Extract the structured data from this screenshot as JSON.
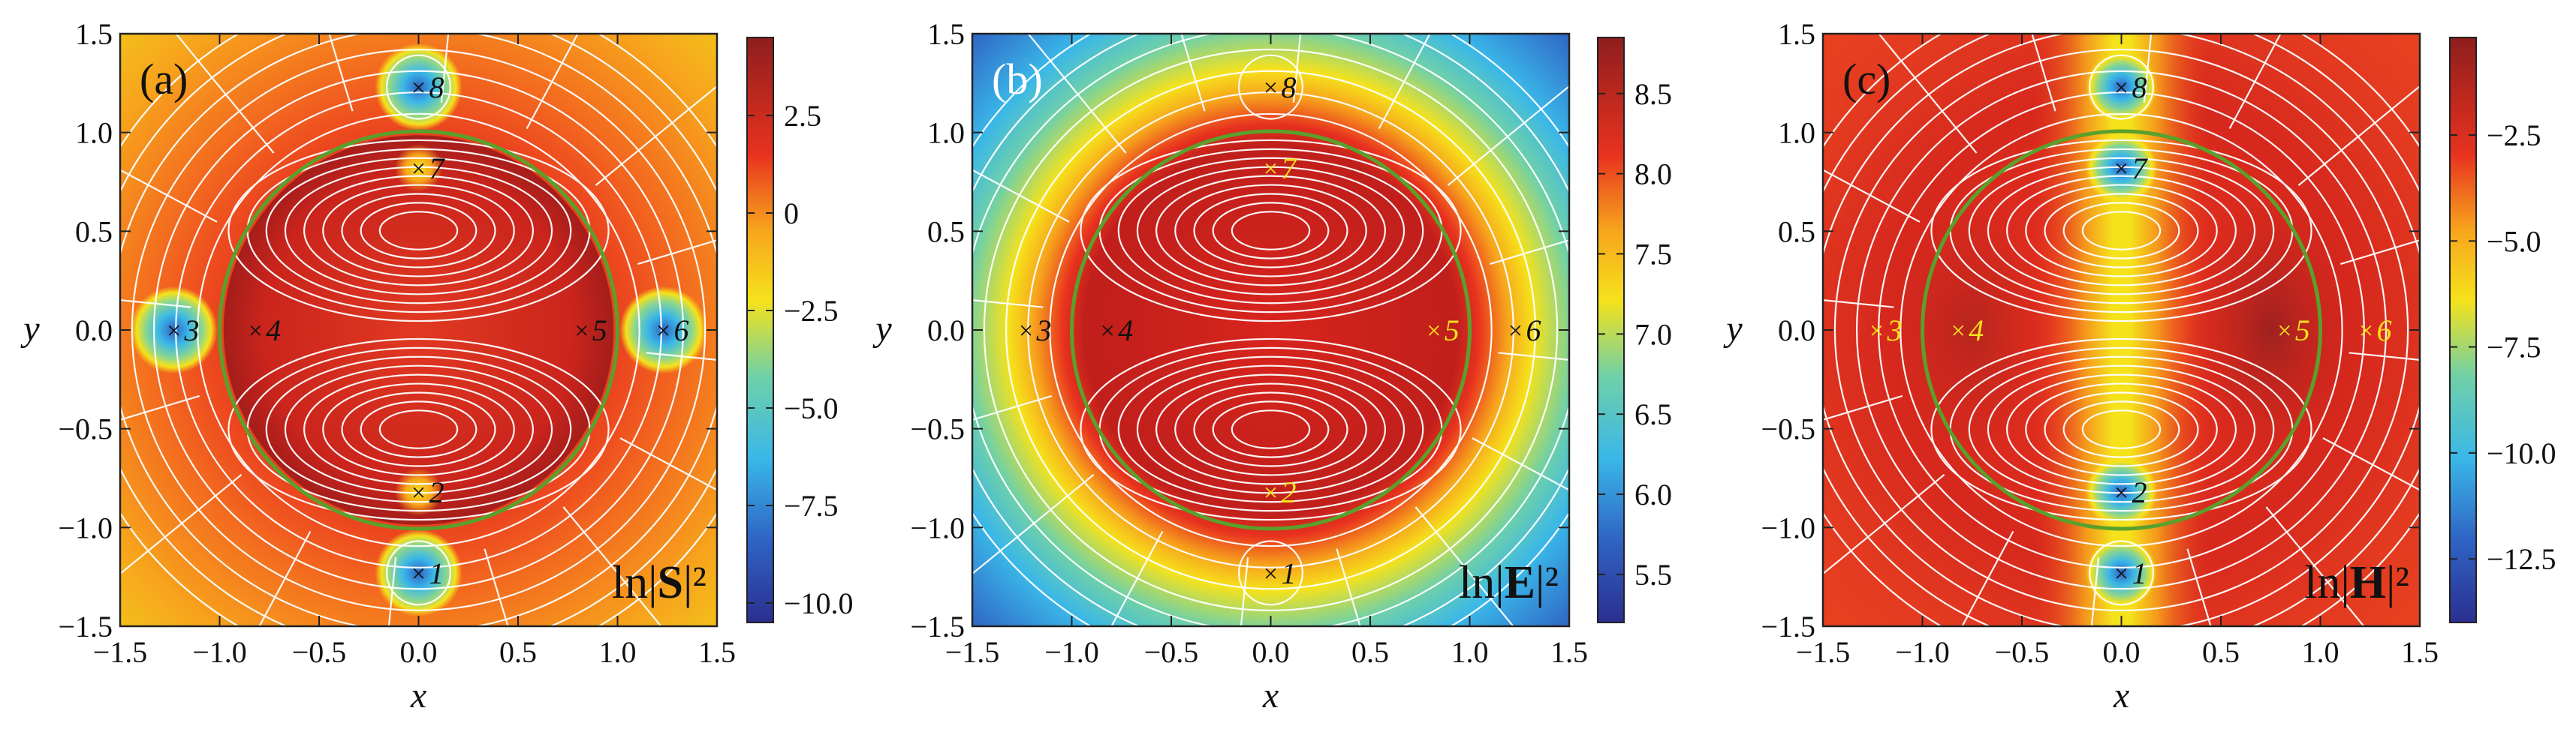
{
  "chart_data": [
    {
      "type": "heatmap",
      "panel_label": "(a)",
      "field_label": "ln|S|²",
      "field_prefix": "ln|",
      "field_symbol": "S",
      "field_suffix": "|²",
      "xlabel": "x",
      "ylabel": "y",
      "xlim": [
        -1.5,
        1.5
      ],
      "ylim": [
        -1.5,
        1.5
      ],
      "x_ticks": [
        "−1.5",
        "−1.0",
        "−0.5",
        "0.0",
        "0.5",
        "1.0",
        "1.5"
      ],
      "y_ticks": [
        "−1.5",
        "−1.0",
        "−0.5",
        "0.0",
        "0.5",
        "1.0",
        "1.5"
      ],
      "x_tick_values": [
        -1.5,
        -1.0,
        -0.5,
        0.0,
        0.5,
        1.0,
        1.5
      ],
      "y_tick_values": [
        -1.5,
        -1.0,
        -0.5,
        0.0,
        0.5,
        1.0,
        1.5
      ],
      "colorbar": {
        "min": -10.5,
        "max": 4.5,
        "ticks": [
          "2.5",
          "0",
          "−2.5",
          "−5.0",
          "−7.5",
          "−10.0"
        ],
        "tick_values": [
          2.5,
          0,
          -2.5,
          -5.0,
          -7.5,
          -10.0
        ]
      },
      "circle": {
        "center": [
          0,
          0
        ],
        "radius": 1.0,
        "color": "#5aa02c"
      },
      "points": [
        {
          "label": "1",
          "x": 0.0,
          "y": -1.23,
          "color": "#111111"
        },
        {
          "label": "2",
          "x": 0.0,
          "y": -0.82,
          "color": "#111111"
        },
        {
          "label": "3",
          "x": -1.23,
          "y": 0.0,
          "color": "#111111"
        },
        {
          "label": "4",
          "x": -0.82,
          "y": 0.0,
          "color": "#111111"
        },
        {
          "label": "5",
          "x": 0.82,
          "y": 0.0,
          "color": "#111111"
        },
        {
          "label": "6",
          "x": 1.23,
          "y": 0.0,
          "color": "#111111"
        },
        {
          "label": "7",
          "x": 0.0,
          "y": 0.82,
          "color": "#111111"
        },
        {
          "label": "8",
          "x": 0.0,
          "y": 1.23,
          "color": "#111111"
        }
      ]
    },
    {
      "type": "heatmap",
      "panel_label": "(b)",
      "field_label": "ln|E|²",
      "field_prefix": "ln|",
      "field_symbol": "E",
      "field_suffix": "|²",
      "xlabel": "x",
      "ylabel": "y",
      "xlim": [
        -1.5,
        1.5
      ],
      "ylim": [
        -1.5,
        1.5
      ],
      "x_ticks": [
        "−1.5",
        "−1.0",
        "−0.5",
        "0.0",
        "0.5",
        "1.0",
        "1.5"
      ],
      "y_ticks": [
        "−1.5",
        "−1.0",
        "−0.5",
        "0.0",
        "0.5",
        "1.0",
        "1.5"
      ],
      "x_tick_values": [
        -1.5,
        -1.0,
        -0.5,
        0.0,
        0.5,
        1.0,
        1.5
      ],
      "y_tick_values": [
        -1.5,
        -1.0,
        -0.5,
        0.0,
        0.5,
        1.0,
        1.5
      ],
      "colorbar": {
        "min": 5.2,
        "max": 8.85,
        "ticks": [
          "8.5",
          "8.0",
          "7.5",
          "7.0",
          "6.5",
          "6.0",
          "5.5"
        ],
        "tick_values": [
          8.5,
          8.0,
          7.5,
          7.0,
          6.5,
          6.0,
          5.5
        ]
      },
      "circle": {
        "center": [
          0,
          0
        ],
        "radius": 1.0,
        "color": "#5aa02c"
      },
      "points": [
        {
          "label": "1",
          "x": 0.0,
          "y": -1.23,
          "color": "#111111"
        },
        {
          "label": "2",
          "x": 0.0,
          "y": -0.82,
          "color": "#f5e21b"
        },
        {
          "label": "3",
          "x": -1.23,
          "y": 0.0,
          "color": "#111111"
        },
        {
          "label": "4",
          "x": -0.82,
          "y": 0.0,
          "color": "#111111"
        },
        {
          "label": "5",
          "x": 0.82,
          "y": 0.0,
          "color": "#f5e21b"
        },
        {
          "label": "6",
          "x": 1.23,
          "y": 0.0,
          "color": "#111111"
        },
        {
          "label": "7",
          "x": 0.0,
          "y": 0.82,
          "color": "#f5e21b"
        },
        {
          "label": "8",
          "x": 0.0,
          "y": 1.23,
          "color": "#111111"
        }
      ]
    },
    {
      "type": "heatmap",
      "panel_label": "(c)",
      "field_label": "ln|H|²",
      "field_prefix": "ln|",
      "field_symbol": "H",
      "field_suffix": "|²",
      "xlabel": "x",
      "ylabel": "y",
      "xlim": [
        -1.5,
        1.5
      ],
      "ylim": [
        -1.5,
        1.5
      ],
      "x_ticks": [
        "−1.5",
        "−1.0",
        "−0.5",
        "0.0",
        "0.5",
        "1.0",
        "1.5"
      ],
      "y_ticks": [
        "−1.5",
        "−1.0",
        "−0.5",
        "0.0",
        "0.5",
        "1.0",
        "1.5"
      ],
      "x_tick_values": [
        -1.5,
        -1.0,
        -0.5,
        0.0,
        0.5,
        1.0,
        1.5
      ],
      "y_tick_values": [
        -1.5,
        -1.0,
        -0.5,
        0.0,
        0.5,
        1.0,
        1.5
      ],
      "colorbar": {
        "min": -14.0,
        "max": -0.2,
        "ticks": [
          "−2.5",
          "−5.0",
          "−7.5",
          "−10.0",
          "−12.5"
        ],
        "tick_values": [
          -2.5,
          -5.0,
          -7.5,
          -10.0,
          -12.5
        ]
      },
      "circle": {
        "center": [
          0,
          0
        ],
        "radius": 1.0,
        "color": "#5aa02c"
      },
      "points": [
        {
          "label": "1",
          "x": 0.0,
          "y": -1.23,
          "color": "#111111"
        },
        {
          "label": "2",
          "x": 0.0,
          "y": -0.82,
          "color": "#111111"
        },
        {
          "label": "3",
          "x": -1.23,
          "y": 0.0,
          "color": "#f5e21b"
        },
        {
          "label": "4",
          "x": -0.82,
          "y": 0.0,
          "color": "#f5e21b"
        },
        {
          "label": "5",
          "x": 0.82,
          "y": 0.0,
          "color": "#f5e21b"
        },
        {
          "label": "6",
          "x": 1.23,
          "y": 0.0,
          "color": "#f5e21b"
        },
        {
          "label": "7",
          "x": 0.0,
          "y": 0.82,
          "color": "#111111"
        },
        {
          "label": "8",
          "x": 0.0,
          "y": 1.23,
          "color": "#111111"
        }
      ]
    }
  ]
}
